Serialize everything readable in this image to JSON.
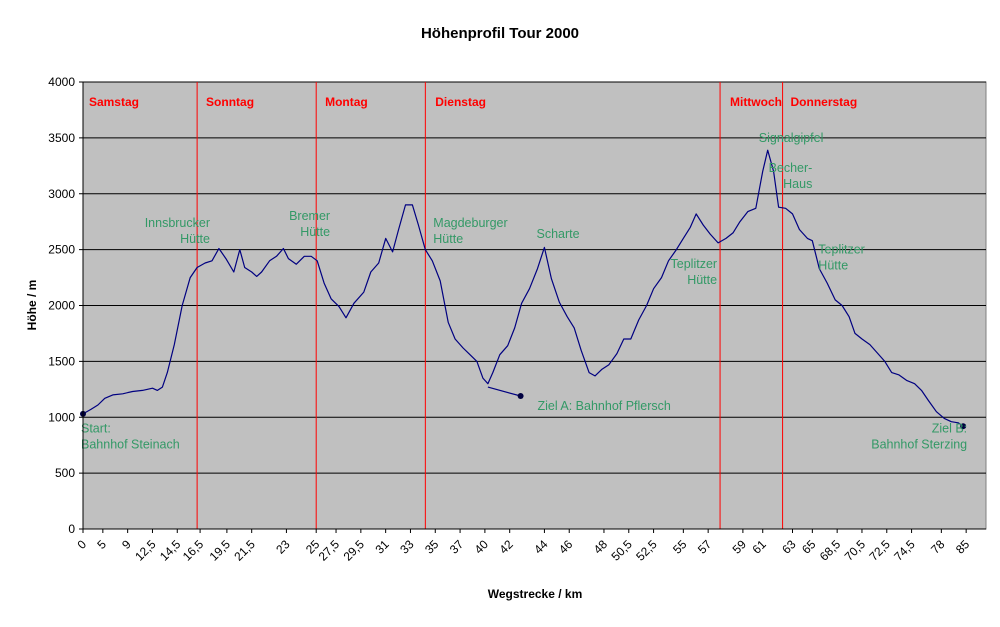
{
  "chart_data": {
    "type": "line",
    "title": "Höhenprofil Tour 2000",
    "xlabel": "Wegstrecke / km",
    "ylabel": "Höhe / m",
    "ylim": [
      0,
      4000
    ],
    "yticks": [
      0,
      500,
      1000,
      1500,
      2000,
      2500,
      3000,
      3500,
      4000
    ],
    "xlim": [
      0,
      91
    ],
    "grid": "horizontal",
    "plot_background": "#c0c0c0",
    "line_color": "#000080",
    "day_color": "#ff0000",
    "annotation_color": "#339966",
    "x_tick_labels": [
      {
        "x": 0,
        "label": "0"
      },
      {
        "x": 2,
        "label": "5"
      },
      {
        "x": 4.5,
        "label": "9"
      },
      {
        "x": 7,
        "label": "12,5"
      },
      {
        "x": 9.5,
        "label": "14,5"
      },
      {
        "x": 11.8,
        "label": "16,5"
      },
      {
        "x": 14.5,
        "label": "19,5"
      },
      {
        "x": 17,
        "label": "21,5"
      },
      {
        "x": 20.5,
        "label": "23"
      },
      {
        "x": 23.5,
        "label": "25"
      },
      {
        "x": 25.5,
        "label": "27,5"
      },
      {
        "x": 28,
        "label": "29,5"
      },
      {
        "x": 30.5,
        "label": "31"
      },
      {
        "x": 33,
        "label": "33"
      },
      {
        "x": 35.5,
        "label": "35"
      },
      {
        "x": 38,
        "label": "37"
      },
      {
        "x": 40.5,
        "label": "40"
      },
      {
        "x": 43,
        "label": "42"
      },
      {
        "x": 46.5,
        "label": "44"
      },
      {
        "x": 49,
        "label": "46"
      },
      {
        "x": 52.5,
        "label": "48"
      },
      {
        "x": 55,
        "label": "50,5"
      },
      {
        "x": 57.5,
        "label": "52,5"
      },
      {
        "x": 60.5,
        "label": "55"
      },
      {
        "x": 63,
        "label": "57"
      },
      {
        "x": 66.5,
        "label": "59"
      },
      {
        "x": 68.5,
        "label": "61"
      },
      {
        "x": 71.5,
        "label": "63"
      },
      {
        "x": 73.5,
        "label": "65"
      },
      {
        "x": 76,
        "label": "68,5"
      },
      {
        "x": 78.5,
        "label": "70,5"
      },
      {
        "x": 81,
        "label": "72,5"
      },
      {
        "x": 83.5,
        "label": "74,5"
      },
      {
        "x": 86.5,
        "label": "78"
      },
      {
        "x": 89,
        "label": "85"
      }
    ],
    "series": [
      {
        "points": [
          [
            0,
            1030
          ],
          [
            0.8,
            1070
          ],
          [
            1.5,
            1110
          ],
          [
            2.2,
            1170
          ],
          [
            3,
            1200
          ],
          [
            4,
            1210
          ],
          [
            5,
            1230
          ],
          [
            6,
            1240
          ],
          [
            7,
            1260
          ],
          [
            7.5,
            1240
          ],
          [
            8,
            1270
          ],
          [
            8.5,
            1400
          ],
          [
            9.2,
            1650
          ],
          [
            10,
            2000
          ],
          [
            10.8,
            2250
          ],
          [
            11.5,
            2340
          ],
          [
            12.3,
            2380
          ],
          [
            13,
            2400
          ],
          [
            13.7,
            2510
          ],
          [
            14.4,
            2420
          ],
          [
            15.2,
            2300
          ],
          [
            15.8,
            2500
          ],
          [
            16.3,
            2340
          ],
          [
            17,
            2300
          ],
          [
            17.5,
            2260
          ],
          [
            18,
            2300
          ],
          [
            18.8,
            2400
          ],
          [
            19.5,
            2440
          ],
          [
            20.2,
            2510
          ],
          [
            20.7,
            2420
          ],
          [
            21.5,
            2370
          ],
          [
            22.3,
            2440
          ],
          [
            23,
            2440
          ],
          [
            23.6,
            2400
          ],
          [
            24.3,
            2200
          ],
          [
            25,
            2060
          ],
          [
            25.8,
            1990
          ],
          [
            26.5,
            1890
          ],
          [
            27.3,
            2020
          ],
          [
            28.3,
            2120
          ],
          [
            29,
            2300
          ],
          [
            29.8,
            2380
          ],
          [
            30.5,
            2600
          ],
          [
            31.2,
            2480
          ],
          [
            31.8,
            2680
          ],
          [
            32.5,
            2900
          ],
          [
            33.2,
            2900
          ],
          [
            33.8,
            2720
          ],
          [
            34.5,
            2500
          ],
          [
            35.2,
            2400
          ],
          [
            36,
            2220
          ],
          [
            36.8,
            1850
          ],
          [
            37.5,
            1700
          ],
          [
            38.3,
            1620
          ],
          [
            39,
            1560
          ],
          [
            39.7,
            1500
          ],
          [
            40.3,
            1350
          ],
          [
            40.8,
            1300
          ],
          [
            41.3,
            1400
          ],
          [
            42,
            1560
          ],
          [
            42.8,
            1640
          ],
          [
            43.5,
            1800
          ],
          [
            44.2,
            2020
          ],
          [
            45,
            2150
          ],
          [
            45.8,
            2330
          ],
          [
            46.5,
            2520
          ],
          [
            47.2,
            2240
          ],
          [
            48,
            2030
          ],
          [
            48.8,
            1900
          ],
          [
            49.5,
            1800
          ],
          [
            50.2,
            1600
          ],
          [
            51,
            1400
          ],
          [
            51.6,
            1370
          ],
          [
            52.3,
            1430
          ],
          [
            53,
            1470
          ],
          [
            53.8,
            1570
          ],
          [
            54.5,
            1700
          ],
          [
            55.2,
            1700
          ],
          [
            56,
            1870
          ],
          [
            56.8,
            2000
          ],
          [
            57.5,
            2150
          ],
          [
            58.3,
            2250
          ],
          [
            59,
            2400
          ],
          [
            59.8,
            2500
          ],
          [
            60.5,
            2600
          ],
          [
            61.2,
            2700
          ],
          [
            61.8,
            2820
          ],
          [
            62.5,
            2720
          ],
          [
            63.2,
            2640
          ],
          [
            64,
            2560
          ],
          [
            64.8,
            2600
          ],
          [
            65.5,
            2650
          ],
          [
            66.2,
            2750
          ],
          [
            67,
            2840
          ],
          [
            67.8,
            2870
          ],
          [
            68.5,
            3200
          ],
          [
            69,
            3390
          ],
          [
            69.6,
            3200
          ],
          [
            70.1,
            2880
          ],
          [
            70.8,
            2870
          ],
          [
            71.5,
            2820
          ],
          [
            72.2,
            2680
          ],
          [
            73,
            2600
          ],
          [
            73.5,
            2580
          ],
          [
            74.2,
            2330
          ],
          [
            75,
            2200
          ],
          [
            75.8,
            2050
          ],
          [
            76.5,
            2000
          ],
          [
            77.2,
            1900
          ],
          [
            77.8,
            1750
          ],
          [
            78.5,
            1700
          ],
          [
            79.3,
            1650
          ],
          [
            80,
            1580
          ],
          [
            80.8,
            1500
          ],
          [
            81.5,
            1400
          ],
          [
            82.2,
            1380
          ],
          [
            83,
            1330
          ],
          [
            83.8,
            1300
          ],
          [
            84.5,
            1240
          ],
          [
            85.2,
            1150
          ],
          [
            86,
            1050
          ],
          [
            86.8,
            990
          ],
          [
            87.5,
            960
          ],
          [
            88.2,
            950
          ],
          [
            88.7,
            920
          ]
        ]
      },
      {
        "points": [
          [
            40.8,
            1270
          ],
          [
            44.1,
            1190
          ]
        ]
      }
    ],
    "endpoint_markers": [
      [
        0,
        1030
      ],
      [
        44.1,
        1190
      ],
      [
        88.7,
        920
      ]
    ],
    "day_dividers": [
      11.5,
      23.5,
      34.5,
      64.2,
      70.5
    ],
    "day_labels": [
      {
        "x": 0.6,
        "label": "Samstag"
      },
      {
        "x": 12.4,
        "label": "Sonntag"
      },
      {
        "x": 24.4,
        "label": "Montag"
      },
      {
        "x": 35.5,
        "label": "Dienstag"
      },
      {
        "x": 65.2,
        "label": "Mittwoch"
      },
      {
        "x": 71.3,
        "label": "Donnerstag"
      }
    ],
    "annotations": [
      {
        "lines": [
          "Innsbrucker",
          "Hütte"
        ],
        "x": 12.8,
        "y": 2740,
        "anchor": "end"
      },
      {
        "lines": [
          "Bremer",
          "Hütte"
        ],
        "x": 24.9,
        "y": 2800,
        "anchor": "end"
      },
      {
        "lines": [
          "Magdeburger",
          "Hütte"
        ],
        "x": 35.3,
        "y": 2740,
        "anchor": "start"
      },
      {
        "lines": [
          "Scharte"
        ],
        "x": 45.7,
        "y": 2640,
        "anchor": "start"
      },
      {
        "lines": [
          "Signalgipfel"
        ],
        "x": 68.1,
        "y": 3500,
        "anchor": "start"
      },
      {
        "lines": [
          "Becher-",
          "Haus"
        ],
        "x": 73.5,
        "y": 3230,
        "anchor": "end"
      },
      {
        "lines": [
          "Teplitzer",
          "Hütte"
        ],
        "x": 74.1,
        "y": 2500,
        "anchor": "start"
      },
      {
        "lines": [
          "Teplitzer",
          "Hütte"
        ],
        "x": 63.9,
        "y": 2370,
        "anchor": "end"
      },
      {
        "lines": [
          "Ziel A: Bahnhof Pflersch"
        ],
        "x": 45.8,
        "y": 1100,
        "anchor": "start"
      },
      {
        "lines": [
          "Start:",
          "Bahnhof Steinach"
        ],
        "x": -0.2,
        "y": 900,
        "anchor": "start"
      },
      {
        "lines": [
          "Ziel B:",
          "Bahnhof Sterzing"
        ],
        "x": 89.1,
        "y": 900,
        "anchor": "end"
      }
    ]
  }
}
